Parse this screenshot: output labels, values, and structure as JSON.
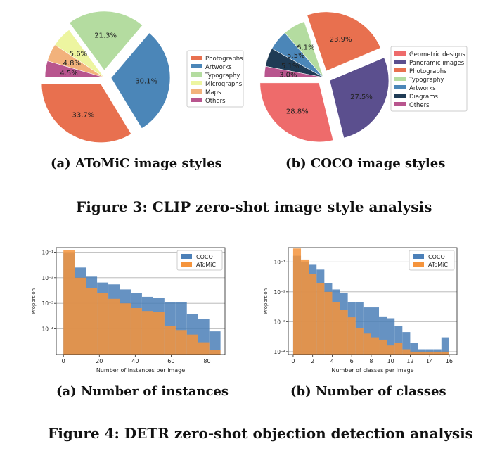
{
  "figure3": {
    "caption": "Figure 3: CLIP zero-shot image style analysis",
    "pie_a_caption": "(a) AToMiC image styles",
    "pie_b_caption": "(b) COCO image styles"
  },
  "figure4": {
    "caption": "Figure 4: DETR zero-shot objection detection analysis",
    "hist_a_caption": "(a) Number of instances",
    "hist_b_caption": "(b) Number of classes"
  },
  "chart_data": [
    {
      "type": "pie",
      "legend_placement": "right",
      "slices": [
        {
          "label": "Photographs",
          "value": 33.7,
          "label_text": "33.7%",
          "color": "#e8704f",
          "explode": true
        },
        {
          "label": "Artworks",
          "value": 30.1,
          "label_text": "30.1%",
          "color": "#4b86b8",
          "explode": true
        },
        {
          "label": "Typography",
          "value": 21.3,
          "label_text": "21.3%",
          "color": "#b4dca0",
          "explode": true
        },
        {
          "label": "Micrographs",
          "value": 5.6,
          "label_text": "5.6%",
          "color": "#edf5a0",
          "explode": false
        },
        {
          "label": "Maps",
          "value": 4.8,
          "label_text": "4.8%",
          "color": "#f2b27c",
          "explode": false
        },
        {
          "label": "Others",
          "value": 4.5,
          "label_text": "4.5%",
          "color": "#b8558e",
          "explode": false
        }
      ]
    },
    {
      "type": "pie",
      "legend_placement": "right",
      "slices": [
        {
          "label": "Geometric designs",
          "value": 28.8,
          "label_text": "28.8%",
          "color": "#ee6b6b",
          "explode": true
        },
        {
          "label": "Panoramic images",
          "value": 27.5,
          "label_text": "27.5%",
          "color": "#5b4f8e",
          "explode": true
        },
        {
          "label": "Photographs",
          "value": 23.9,
          "label_text": "23.9%",
          "color": "#e8704f",
          "explode": true
        },
        {
          "label": "Typography",
          "value": 6.1,
          "label_text": "6.1%",
          "color": "#b4dca0",
          "explode": false
        },
        {
          "label": "Artworks",
          "value": 5.5,
          "label_text": "5.5%",
          "color": "#4b86b8",
          "explode": false
        },
        {
          "label": "Diagrams",
          "value": 5.1,
          "label_text": "5.1%",
          "color": "#1f3b55",
          "explode": false
        },
        {
          "label": "Others",
          "value": 3.0,
          "label_text": "3.0%",
          "color": "#b8558e",
          "explode": false
        }
      ]
    },
    {
      "type": "bar",
      "kind": "histogram",
      "xlabel": "Number of instances per image",
      "ylabel": "Proportion",
      "xlim": [
        -4,
        90
      ],
      "ylim": [
        1e-05,
        0.15
      ],
      "yscale": "log",
      "grid": "y",
      "xticks": [
        0,
        20,
        40,
        60,
        80
      ],
      "xtick_labels": [
        "0",
        "20",
        "40",
        "60",
        "80"
      ],
      "yticks": [
        0.1,
        0.01,
        0.001,
        0.0001
      ],
      "ytick_labels": [
        "10⁻¹",
        "10⁻²",
        "10⁻³",
        "10⁻⁴"
      ],
      "legend_placement": "top-right",
      "bin_edges": [
        0,
        6.25,
        12.5,
        18.75,
        25,
        31.25,
        37.5,
        43.75,
        50,
        56.25,
        62.5,
        68.75,
        75,
        81.25,
        87.5
      ],
      "series": [
        {
          "name": "COCO",
          "color": "#4c80b8",
          "values": [
            0.09,
            0.025,
            0.011,
            0.0065,
            0.0055,
            0.0035,
            0.0026,
            0.0018,
            0.0016,
            0.0011,
            0.0011,
            0.00038,
            0.00024,
            8e-05
          ]
        },
        {
          "name": "AToMiC",
          "color": "#f5943c",
          "values": [
            0.12,
            0.01,
            0.004,
            0.0025,
            0.0015,
            0.001,
            0.00065,
            0.0005,
            0.00045,
            0.00013,
            9e-05,
            6e-05,
            3e-05,
            1.5e-05
          ]
        }
      ]
    },
    {
      "type": "bar",
      "kind": "histogram",
      "xlabel": "Number of classes per image",
      "ylabel": "Proportion",
      "xlim": [
        -0.5,
        16.8
      ],
      "ylim": [
        8e-05,
        0.3
      ],
      "yscale": "log",
      "grid": "y",
      "xticks": [
        0,
        2,
        4,
        6,
        8,
        10,
        12,
        14,
        16
      ],
      "xtick_labels": [
        "0",
        "2",
        "4",
        "6",
        "8",
        "10",
        "12",
        "14",
        "16"
      ],
      "yticks": [
        0.1,
        0.01,
        0.001,
        0.0001
      ],
      "ytick_labels": [
        "10⁻¹",
        "10⁻²",
        "10⁻³",
        "10⁻⁴"
      ],
      "legend_placement": "top-right",
      "bin_edges": [
        0,
        0.8,
        1.6,
        2.4,
        3.2,
        4.0,
        4.8,
        5.6,
        6.4,
        7.2,
        8.0,
        8.8,
        9.6,
        10.4,
        11.2,
        12.0,
        12.8,
        13.6,
        14.4,
        15.2,
        16.0
      ],
      "series": [
        {
          "name": "COCO",
          "color": "#4c80b8",
          "values": [
            0.16,
            0.1,
            0.08,
            0.055,
            0.02,
            0.012,
            0.009,
            0.0045,
            0.0045,
            0.003,
            0.003,
            0.0015,
            0.0013,
            0.0007,
            0.00045,
            0.0002,
            0.00012,
            0.00012,
            0.00012,
            0.0003
          ]
        },
        {
          "name": "AToMiC",
          "color": "#f5943c",
          "values": [
            0.28,
            0.12,
            0.04,
            0.02,
            0.01,
            0.0045,
            0.0025,
            0.0014,
            0.0006,
            0.0004,
            0.0003,
            0.00025,
            0.00016,
            0.0002,
            0.00012,
            0.0001,
            0.0001,
            0.0001,
            0.0001,
            0.0001
          ]
        }
      ]
    }
  ]
}
